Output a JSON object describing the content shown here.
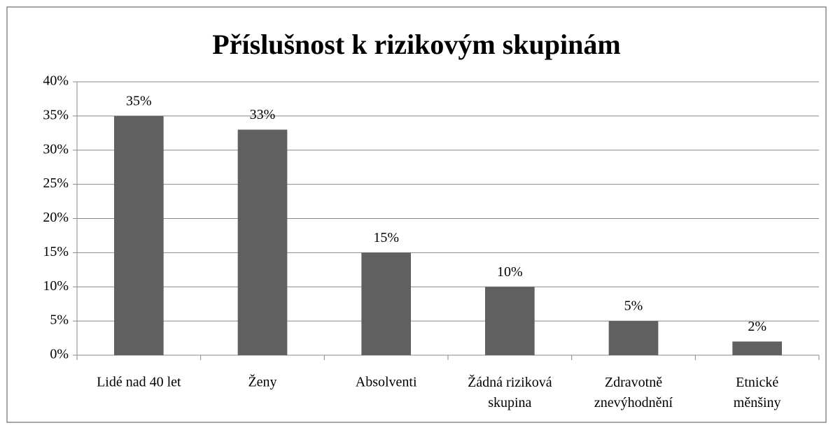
{
  "chart_data": {
    "type": "bar",
    "title": "Příslušnost k rizikovým skupinám",
    "categories": [
      "Lidé nad 40 let",
      "Ženy",
      "Absolventi",
      "Žádná riziková\nskupina",
      "Zdravotně\nznevýhodnění",
      "Etnické\nměnšiny"
    ],
    "values": [
      35,
      33,
      15,
      10,
      5,
      2
    ],
    "value_labels": [
      "35%",
      "33%",
      "15%",
      "10%",
      "5%",
      "2%"
    ],
    "color": "#606060",
    "ylim": [
      0,
      40
    ],
    "yticks": [
      {
        "value": 0,
        "label": "0%"
      },
      {
        "value": 5,
        "label": "5%"
      },
      {
        "value": 10,
        "label": "10%"
      },
      {
        "value": 15,
        "label": "15%"
      },
      {
        "value": 20,
        "label": "20%"
      },
      {
        "value": 25,
        "label": "25%"
      },
      {
        "value": 30,
        "label": "30%"
      },
      {
        "value": 35,
        "label": "35%"
      },
      {
        "value": 40,
        "label": "40%"
      }
    ],
    "grid": true
  }
}
